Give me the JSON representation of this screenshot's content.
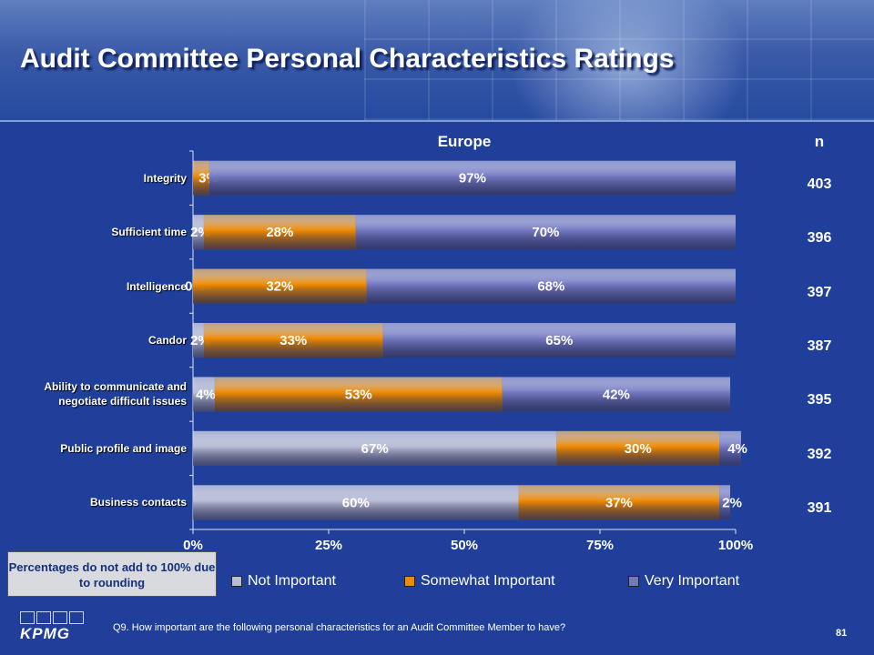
{
  "page": {
    "title": "Audit Committee Personal Characteristics Ratings",
    "subtitle": "Europe",
    "n_header": "n",
    "note": "Percentages do not add to 100% due to rounding",
    "question": "Q9. How important are the following personal characteristics for an Audit Committee Member to have?",
    "page_number": "81",
    "logo_text": "KPMG"
  },
  "chart_data": {
    "type": "bar",
    "orientation": "horizontal",
    "stacked": true,
    "title": "Europe",
    "categories": [
      "Integrity",
      "Sufficient time",
      "Intelligence",
      "Candor",
      "Ability to communicate and negotiate difficult issues",
      "Public profile and image",
      "Business contacts"
    ],
    "category_lines": [
      [
        "Integrity"
      ],
      [
        "Sufficient time"
      ],
      [
        "Intelligence"
      ],
      [
        "Candor"
      ],
      [
        "Ability to communicate and",
        "negotiate difficult issues"
      ],
      [
        "Public profile and image"
      ],
      [
        "Business contacts"
      ]
    ],
    "series": [
      {
        "name": "Not Important",
        "color": "#b9bdd6",
        "values": [
          0,
          2,
          0,
          2,
          4,
          67,
          60
        ]
      },
      {
        "name": "Somewhat Important",
        "color": "#f08a00",
        "values": [
          3,
          28,
          32,
          33,
          53,
          30,
          37
        ]
      },
      {
        "name": "Very Important",
        "color": "#7478c2",
        "values": [
          97,
          70,
          68,
          65,
          42,
          4,
          2
        ]
      }
    ],
    "segment_labels": [
      [
        "",
        "3%",
        "97%"
      ],
      [
        "2%",
        "28%",
        "70%"
      ],
      [
        "0%",
        "32%",
        "68%"
      ],
      [
        "2%",
        "33%",
        "65%"
      ],
      [
        "4%",
        "53%",
        "42%"
      ],
      [
        "67%",
        "30%",
        "4%"
      ],
      [
        "60%",
        "37%",
        "2%"
      ]
    ],
    "n_values": [
      "403",
      "396",
      "397",
      "387",
      "395",
      "392",
      "391"
    ],
    "x_ticks": [
      "0%",
      "25%",
      "50%",
      "75%",
      "100%"
    ],
    "xlim": [
      0,
      100
    ],
    "legend": "bottom"
  }
}
